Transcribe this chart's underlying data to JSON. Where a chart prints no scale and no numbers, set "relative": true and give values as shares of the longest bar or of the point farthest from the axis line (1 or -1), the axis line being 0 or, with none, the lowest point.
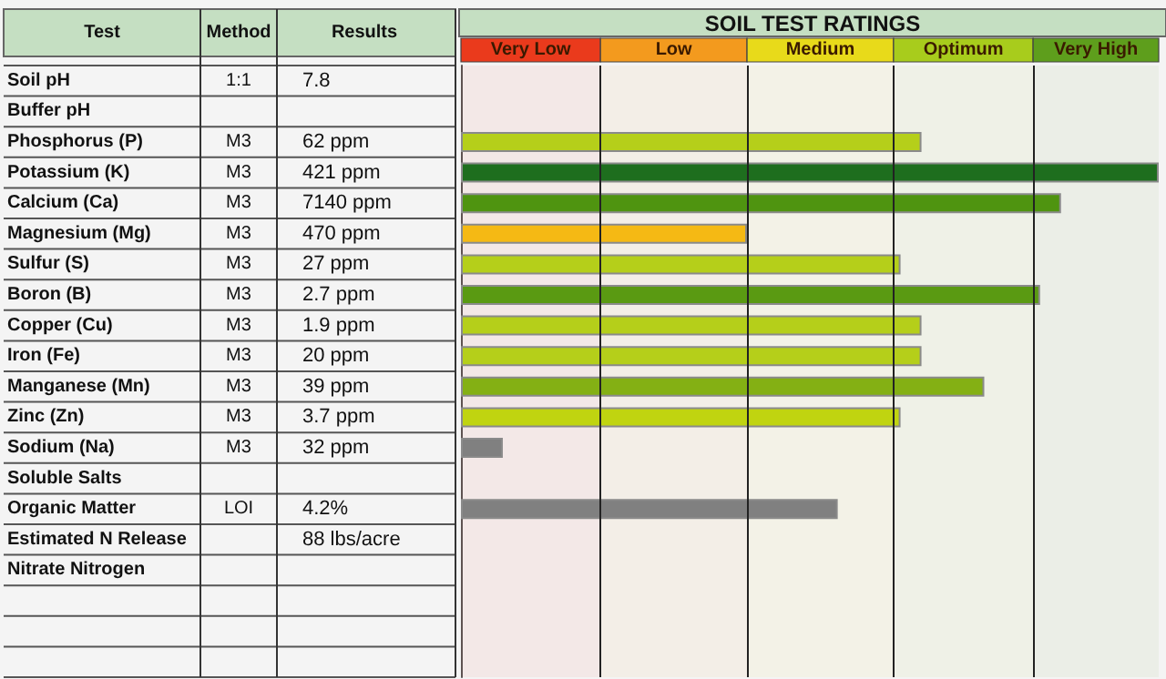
{
  "chart_data": {
    "type": "bar",
    "orientation": "horizontal",
    "relative": true,
    "title": "SOIL TEST RATINGS",
    "ylabel": "Test",
    "categories": [
      "Soil pH",
      "Buffer pH",
      "Phosphorus (P)",
      "Potassium (K)",
      "Calcium (Ca)",
      "Magnesium (Mg)",
      "Sulfur (S)",
      "Boron (B)",
      "Copper (Cu)",
      "Iron (Fe)",
      "Manganese (Mn)",
      "Zinc (Zn)",
      "Sodium (Na)",
      "Soluble Salts",
      "Organic Matter",
      "Estimated N Release",
      "Nitrate Nitrogen",
      null,
      null,
      null
    ],
    "values": [
      null,
      null,
      0.66,
      1,
      0.86,
      0.41,
      0.63,
      0.83,
      0.66,
      0.66,
      0.75,
      0.63,
      0.06,
      null,
      0.54,
      null,
      null,
      null,
      null,
      null
    ],
    "colors": [
      "#b5cf1a",
      "#b5cf1a",
      "#b5cf1a",
      "#1e6e1e",
      "#4f9410",
      "#f5b914",
      "#b5cf1a",
      "#5a9a12",
      "#b5cf1a",
      "#b5cf1a",
      "#84b014",
      "#c0d410",
      "#808080",
      "#808080",
      "#808080",
      "#808080",
      "#808080",
      "#808080",
      "#808080",
      "#808080"
    ],
    "bands": [
      {
        "axis": "x",
        "from": 0,
        "to": 0.2,
        "label": "Very Low",
        "color": "#ea3a1c"
      },
      {
        "axis": "x",
        "from": 0.2,
        "to": 0.41,
        "label": "Low",
        "color": "#f39a1e"
      },
      {
        "axis": "x",
        "from": 0.41,
        "to": 0.62,
        "label": "Medium",
        "color": "#e8da1a"
      },
      {
        "axis": "x",
        "from": 0.62,
        "to": 0.82,
        "label": "Optimum",
        "color": "#a8cc1c"
      },
      {
        "axis": "x",
        "from": 0.82,
        "to": 1,
        "label": "Very High",
        "color": "#5e9e1c"
      }
    ],
    "annotations": [
      "Method",
      "Results",
      "1:1",
      "7.8",
      null,
      null,
      "M3",
      "62 ppm",
      "M3",
      "421 ppm",
      "M3",
      "7140 ppm",
      "M3",
      "470 ppm",
      "M3",
      "27 ppm",
      "M3",
      "2.7 ppm",
      "M3",
      "1.9 ppm",
      "M3",
      "20 ppm",
      "M3",
      "39 ppm",
      "M3",
      "3.7 ppm",
      "M3",
      "32 ppm",
      null,
      null,
      "LOI",
      "4.2%",
      null,
      "88 lbs/acre"
    ]
  }
}
